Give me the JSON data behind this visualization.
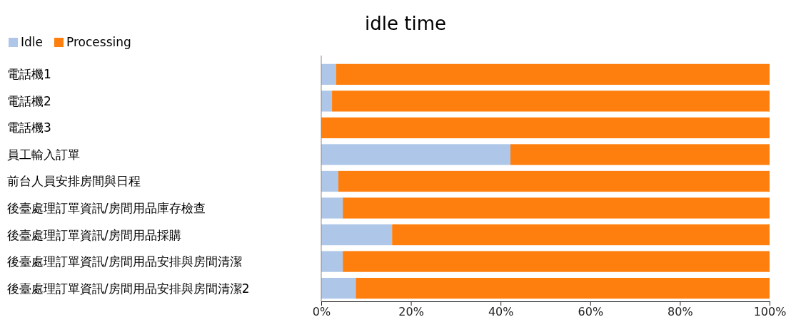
{
  "chart_data": {
    "type": "bar",
    "title": "idle time",
    "orientation": "horizontal",
    "stacked": true,
    "legend": "top left",
    "categories": [
      "電話機1",
      "電話機2",
      "電話機3",
      "員工輸入訂單",
      "前台人員安排房間與日程",
      "後臺處理訂單資訊/房間用品庫存檢查",
      "後臺處理訂單資訊/房間用品採購",
      "後臺處理訂單資訊/房間用品安排與房間清潔",
      "後臺處理訂單資訊/房間用品安排與房間清潔2"
    ],
    "series": [
      {
        "name": "Idle",
        "color": "#aec7e8",
        "values": [
          3.3,
          2.4,
          0,
          42.2,
          3.8,
          4.8,
          15.8,
          4.8,
          7.7
        ]
      },
      {
        "name": "Processing",
        "color": "#ff7f0e",
        "values": [
          96.7,
          97.6,
          100,
          57.8,
          96.2,
          95.2,
          84.2,
          95.2,
          92.3
        ]
      }
    ],
    "xlim": [
      0,
      100
    ],
    "xticks": [
      {
        "value": 0,
        "label": "0%"
      },
      {
        "value": 20,
        "label": "20%"
      },
      {
        "value": 40,
        "label": "40%"
      },
      {
        "value": 60,
        "label": "60%"
      },
      {
        "value": 80,
        "label": "80%"
      },
      {
        "value": 100,
        "label": "100%"
      }
    ]
  }
}
